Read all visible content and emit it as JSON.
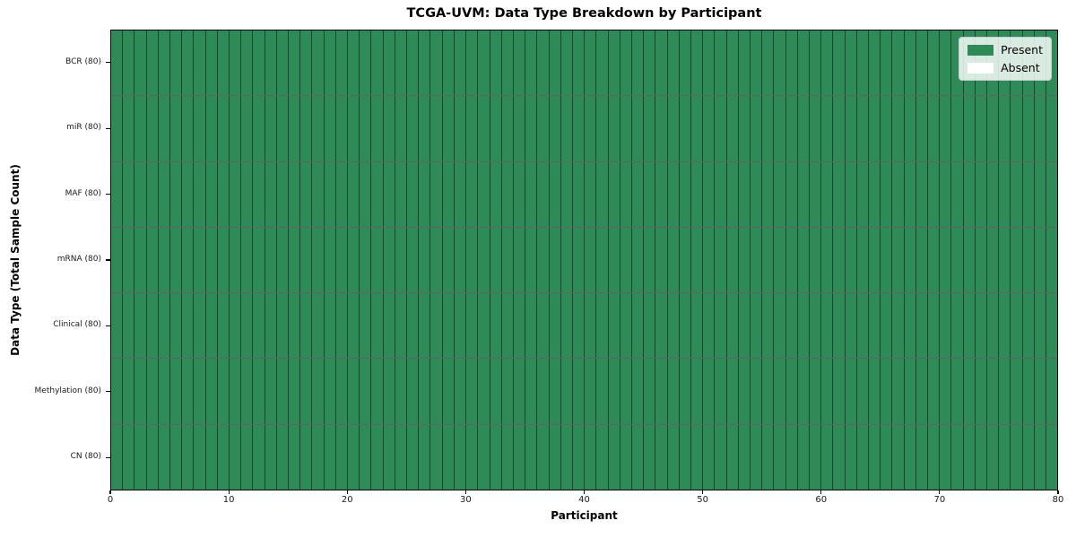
{
  "chart_data": {
    "type": "heatmap",
    "title": "TCGA-UVM: Data Type Breakdown by Participant",
    "xlabel": "Participant",
    "ylabel": "Data Type (Total Sample Count)",
    "n_participants": 80,
    "x_range": [
      0,
      80
    ],
    "x_ticks": [
      "0",
      "10",
      "20",
      "30",
      "40",
      "50",
      "60",
      "70",
      "80"
    ],
    "rows": [
      {
        "label": "BCR (80)",
        "data_type": "BCR",
        "total_samples": 80,
        "present_count": 80,
        "absent_count": 0
      },
      {
        "label": "miR (80)",
        "data_type": "miR",
        "total_samples": 80,
        "present_count": 80,
        "absent_count": 0
      },
      {
        "label": "MAF (80)",
        "data_type": "MAF",
        "total_samples": 80,
        "present_count": 80,
        "absent_count": 0
      },
      {
        "label": "mRNA (80)",
        "data_type": "mRNA",
        "total_samples": 80,
        "present_count": 80,
        "absent_count": 0
      },
      {
        "label": "Clinical (80)",
        "data_type": "Clinical",
        "total_samples": 80,
        "present_count": 80,
        "absent_count": 0
      },
      {
        "label": "Methylation (80)",
        "data_type": "Methylation",
        "total_samples": 80,
        "present_count": 80,
        "absent_count": 0
      },
      {
        "label": "CN (80)",
        "data_type": "CN",
        "total_samples": 80,
        "present_count": 80,
        "absent_count": 0
      }
    ],
    "legend": {
      "position": "upper-right",
      "entries": [
        {
          "label": "Present",
          "color": "#2e8b57"
        },
        {
          "label": "Absent",
          "color": "#ffffff"
        }
      ]
    },
    "colors": {
      "present": "#2e8b57",
      "absent": "#ffffff",
      "spine": "#000000"
    },
    "grid": "per-participant vertical cell divisions, per-data-type horizontal divisions"
  }
}
